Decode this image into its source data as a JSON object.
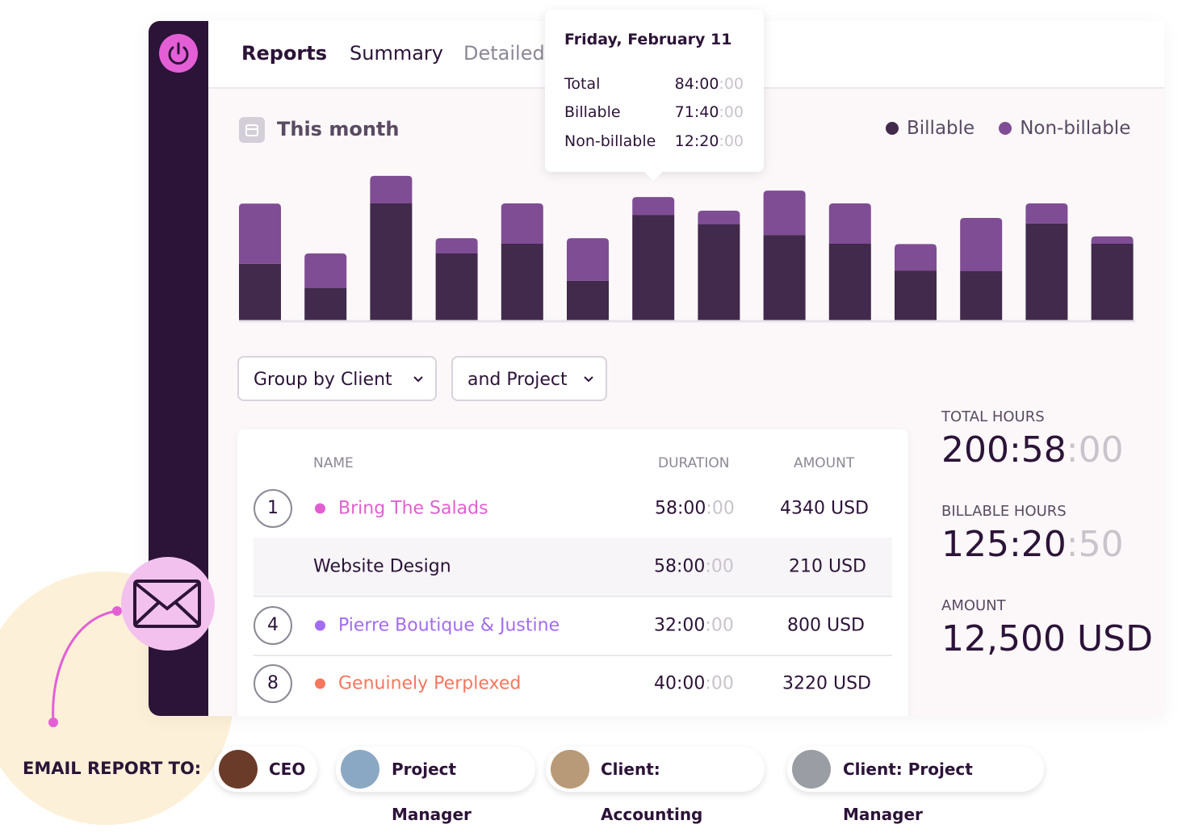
{
  "nav": {
    "tabs": [
      "Reports",
      "Summary",
      "Detailed"
    ]
  },
  "tooltip": {
    "date": "Friday, February 11",
    "rows": [
      {
        "label": "Total",
        "time": "84:00",
        "faded": ":00"
      },
      {
        "label": "Billable",
        "time": "71:40",
        "faded": ":00"
      },
      {
        "label": "Non-billable",
        "time": "12:20",
        "faded": ":00"
      }
    ]
  },
  "period": "This month",
  "chart_data": {
    "type": "bar",
    "stacked": true,
    "ylim": [
      0,
      100
    ],
    "series": [
      {
        "name": "Billable",
        "color": "#412a4c",
        "values": [
          38.5,
          22,
          79.7,
          45.6,
          52.2,
          27,
          71.7,
          65.4,
          58.2,
          52.2,
          34,
          33.5,
          66,
          52.2
        ]
      },
      {
        "name": "Non-billable",
        "color": "#7f4d93",
        "values": [
          41,
          23.6,
          18.7,
          10.4,
          27.5,
          29,
          12.3,
          9.3,
          30.2,
          27.5,
          18,
          36.3,
          13.7,
          5
        ]
      }
    ]
  },
  "filters": [
    "Group by Client",
    "and Project"
  ],
  "table": {
    "headers": [
      "NAME",
      "DURATION",
      "AMOUNT"
    ],
    "rows": [
      {
        "index": 1,
        "dot": "#e05fd0",
        "name": "Bring The Salads",
        "time": "58:00",
        "faded": ":00",
        "amount": "4340 USD"
      },
      {
        "name": "Website Design",
        "time": "58:00",
        "faded": ":00",
        "amount": "210 USD"
      },
      {
        "index": 4,
        "dot": "#a36cf0",
        "name": "Pierre Boutique & Justine",
        "time": "32:00",
        "faded": ":00",
        "amount": "800 USD"
      },
      {
        "index": 8,
        "dot": "#f4775e",
        "name": "Genuinely Perplexed",
        "time": "40:00",
        "faded": ":00",
        "amount": "3220 USD"
      }
    ]
  },
  "totals": [
    {
      "label": "TOTAL HOURS",
      "value": "200:58",
      "faded": ":00"
    },
    {
      "label": "BILLABLE HOURS",
      "value": "125:20",
      "faded": ":50"
    },
    {
      "label": "AMOUNT",
      "value": "12,500 USD"
    }
  ],
  "email": {
    "label": "EMAIL REPORT TO:",
    "recipients": [
      "CEO",
      "Project Manager",
      "Client: Accounting",
      "Client: Project Manager"
    ]
  }
}
